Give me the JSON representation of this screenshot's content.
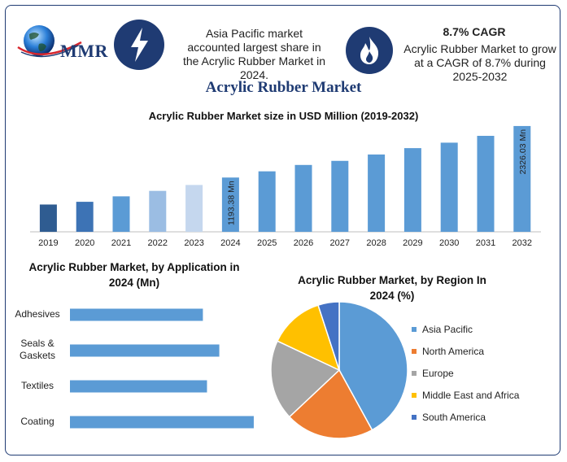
{
  "header": {
    "logo_text": "MMR",
    "logo_icon": "globe-icon",
    "left_icon": "lightning-bolt-icon",
    "left_text": "Asia Pacific market accounted largest share in the Acrylic Rubber Market in 2024.",
    "right_icon": "flame-icon",
    "cagr_label": "8.7% CAGR",
    "right_text": "Acrylic Rubber Market to grow at a CAGR of 8.7% during 2025-2032"
  },
  "title": "Acrylic Rubber Market",
  "colors": {
    "navy": "#1f3b73",
    "bar_blue": "#5b9bd5"
  },
  "chart_data": [
    {
      "type": "bar",
      "title": "Acrylic Rubber Market size in USD Million (2019-2032)",
      "categories": [
        "2019",
        "2020",
        "2021",
        "2022",
        "2023",
        "2024",
        "2025",
        "2026",
        "2027",
        "2028",
        "2029",
        "2030",
        "2031",
        "2032"
      ],
      "values": [
        600,
        660,
        780,
        900,
        1030,
        1193.38,
        1330,
        1470,
        1560,
        1700,
        1840,
        1960,
        2110,
        2326.03
      ],
      "colors": [
        "#2f5c91",
        "#3d73b5",
        "#5b9bd5",
        "#9bbde3",
        "#c5d7ee",
        "#5b9bd5",
        "#5b9bd5",
        "#5b9bd5",
        "#5b9bd5",
        "#5b9bd5",
        "#5b9bd5",
        "#5b9bd5",
        "#5b9bd5",
        "#5b9bd5"
      ],
      "data_labels": [
        {
          "category": "2024",
          "text": "1193.38 Mn"
        },
        {
          "category": "2032",
          "text": "2326.03 Mn"
        }
      ],
      "ylim": [
        0,
        2450
      ]
    },
    {
      "type": "bar",
      "orientation": "horizontal",
      "title": "Acrylic Rubber Market, by Application in 2024 (Mn)",
      "categories": [
        "Adhesives",
        "Seals & Gaskets",
        "Textiles",
        "Coating"
      ],
      "category_lines": [
        [
          "Adhesives"
        ],
        [
          "Seals &",
          "Gaskets"
        ],
        [
          "Textiles"
        ],
        [
          "Coating"
        ]
      ],
      "values": [
        162,
        182,
        167,
        224
      ],
      "xlim": [
        0,
        230
      ],
      "color": "#5b9bd5"
    },
    {
      "type": "pie",
      "title": "Acrylic Rubber Market, by Region In 2024 (%)",
      "series": [
        {
          "name": "Asia Pacific",
          "value": 42,
          "color": "#5b9bd5"
        },
        {
          "name": "North America",
          "value": 21,
          "color": "#ed7d31"
        },
        {
          "name": "Europe",
          "value": 19,
          "color": "#a5a5a5"
        },
        {
          "name": "Middle East and Africa",
          "value": 13,
          "color": "#ffc000"
        },
        {
          "name": "South America",
          "value": 5,
          "color": "#4472c4"
        }
      ],
      "legend": "right"
    }
  ]
}
